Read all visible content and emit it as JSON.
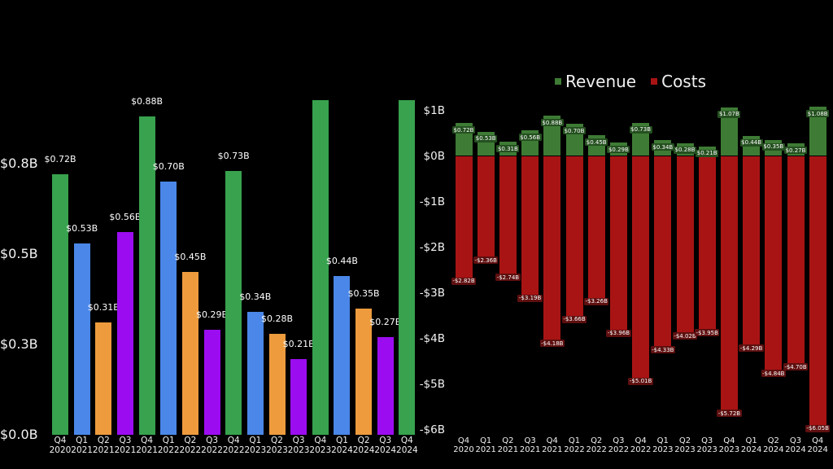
{
  "page": {
    "background": "#000000",
    "text_color": "#f2f2f2"
  },
  "chart_data": [
    {
      "type": "bar",
      "panel": "left",
      "title": "",
      "xlabel": "",
      "ylabel": "",
      "grid": false,
      "legend": null,
      "categories": [
        "Q4 2020",
        "Q1 2021",
        "Q2 2021",
        "Q3 2021",
        "Q4 2021",
        "Q1 2022",
        "Q2 2022",
        "Q3 2022",
        "Q4 2022",
        "Q1 2023",
        "Q2 2023",
        "Q3 2023",
        "Q4 2023",
        "Q1 2024",
        "Q2 2024",
        "Q3 2024",
        "Q4 2024"
      ],
      "values": [
        0.72,
        0.53,
        0.31,
        0.56,
        0.88,
        0.7,
        0.45,
        0.29,
        0.73,
        0.34,
        0.28,
        0.21,
        1.07,
        0.44,
        0.35,
        0.27,
        1.08
      ],
      "data_labels": [
        "$0.72B",
        "$0.53B",
        "$0.31B",
        "$0.56B",
        "$0.88B",
        "$0.70B",
        "$0.45B",
        "$0.29B",
        "$0.73B",
        "$0.34B",
        "$0.28B",
        "$0.21B",
        null,
        "$0.44B",
        "$0.35B",
        "$0.27B",
        null
      ],
      "clipped_indices": [
        12,
        16
      ],
      "quarter_colors": {
        "Q1": "#4a87e8",
        "Q2": "#ee9b3e",
        "Q3": "#9b0df0",
        "Q4": "#38a24e"
      },
      "yticks": [
        {
          "label": "$0.8B",
          "value": 0.75
        },
        {
          "label": "$0.5B",
          "value": 0.5
        },
        {
          "label": "$0.3B",
          "value": 0.25
        },
        {
          "label": "$0.0B",
          "value": 0.0
        }
      ],
      "ylim_visible": [
        0,
        0.925
      ]
    },
    {
      "type": "bar",
      "panel": "right",
      "title": "",
      "xlabel": "",
      "ylabel": "",
      "grid": false,
      "legend_position": "top center",
      "categories": [
        "Q4 2020",
        "Q1 2021",
        "Q2 2021",
        "Q3 2021",
        "Q4 2021",
        "Q1 2022",
        "Q2 2022",
        "Q3 2022",
        "Q4 2022",
        "Q1 2023",
        "Q2 2023",
        "Q3 2023",
        "Q4 2023",
        "Q1 2024",
        "Q2 2024",
        "Q3 2024",
        "Q4 2024"
      ],
      "series": [
        {
          "name": "Revenue",
          "color": "#3e7b35",
          "label_box_color": "#24501f",
          "values": [
            0.72,
            0.53,
            0.31,
            0.56,
            0.88,
            0.7,
            0.45,
            0.29,
            0.73,
            0.34,
            0.28,
            0.21,
            1.07,
            0.44,
            0.35,
            0.27,
            1.08
          ],
          "data_labels": [
            "$0.72B",
            "$0.53B",
            "$0.31B",
            "$0.56B",
            "$0.88B",
            "$0.70B",
            "$0.45B",
            "$0.29B",
            "$0.73B",
            "$0.34B",
            "$0.28B",
            "$0.21B",
            "$1.07B",
            "$0.44B",
            "$0.35B",
            "$0.27B",
            "$1.08B"
          ]
        },
        {
          "name": "Costs",
          "color": "#a81414",
          "label_box_color": "#5e0f0f",
          "values": [
            -2.82,
            -2.36,
            -2.74,
            -3.19,
            -4.18,
            -3.66,
            -3.26,
            -3.96,
            -5.01,
            -4.33,
            -4.02,
            -3.95,
            -5.72,
            -4.29,
            -4.84,
            -4.7,
            -6.05
          ],
          "data_labels": [
            "-$2.82B",
            "-$2.36B",
            "-$2.74B",
            "-$3.19B",
            "-$4.18B",
            "-$3.66B",
            "-$3.26B",
            "-$3.96B",
            "-$5.01B",
            "-$4.33B",
            "-$4.02B",
            "-$3.95B",
            "-$5.72B",
            "-$4.29B",
            "-$4.84B",
            "-$4.70B",
            "-$6.05B"
          ]
        }
      ],
      "yticks": [
        {
          "label": "$1B",
          "value": 1
        },
        {
          "label": "$0B",
          "value": 0
        },
        {
          "label": "-$1B",
          "value": -1
        },
        {
          "label": "-$2B",
          "value": -2
        },
        {
          "label": "-$3B",
          "value": -3
        },
        {
          "label": "-$4B",
          "value": -4
        },
        {
          "label": "-$5B",
          "value": -5
        },
        {
          "label": "-$6B",
          "value": -6
        }
      ],
      "ylim": [
        -6.6,
        1.3
      ]
    }
  ]
}
